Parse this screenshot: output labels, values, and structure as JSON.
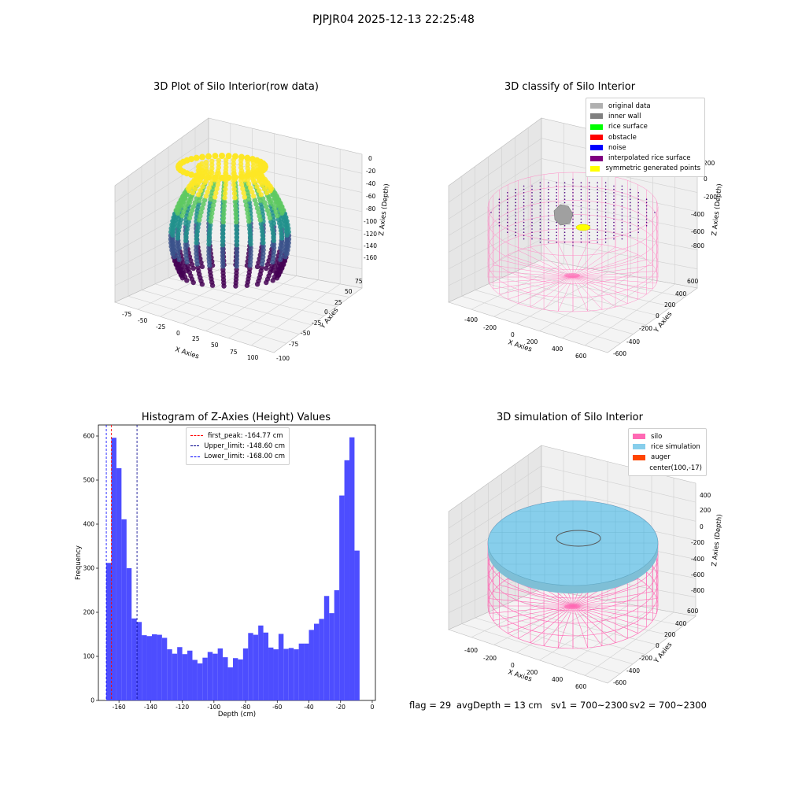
{
  "suptitle": "PJPJR04 2025-12-13 22:25:48",
  "panels": {
    "raw": {
      "title": "3D Plot of Silo Interior(row data)",
      "xlabel": "X Axies",
      "ylabel": "Y Axies",
      "zlabel": "Z Axies (Depth)",
      "xticks": [
        "-75",
        "-50",
        "-25",
        "0",
        "25",
        "50",
        "75",
        "100"
      ],
      "yticks": [
        "75",
        "50",
        "25",
        "0",
        "-25",
        "-50",
        "-75",
        "-100"
      ],
      "zticks": [
        "0",
        "-20",
        "-40",
        "-60",
        "-80",
        "-100",
        "-120",
        "-140",
        "-160"
      ]
    },
    "classify": {
      "title": "3D classify of Silo Interior",
      "xlabel": "X Axies",
      "ylabel": "Y Axies",
      "zlabel": "Z Axies (Depth)",
      "xticks": [
        "-400",
        "-200",
        "0",
        "200",
        "400",
        "600"
      ],
      "yticks": [
        "600",
        "400",
        "200",
        "0",
        "-200",
        "-400",
        "-600"
      ],
      "zticks": [
        "200",
        "0",
        "-200",
        "-400",
        "-600",
        "-800"
      ],
      "legend": [
        {
          "label": "original data",
          "color": "#b0b0b0"
        },
        {
          "label": "inner wall",
          "color": "#808080"
        },
        {
          "label": "rice surface",
          "color": "#00ff00"
        },
        {
          "label": "obstacle",
          "color": "#ff0000"
        },
        {
          "label": "noise",
          "color": "#0000ff"
        },
        {
          "label": "interpolated rice surface",
          "color": "#800080"
        },
        {
          "label": "symmetric generated points",
          "color": "#ffff00"
        }
      ]
    },
    "simulation": {
      "title": "3D simulation of Silo Interior",
      "xlabel": "X Axies",
      "ylabel": "Y Axies",
      "zlabel": "Z Axies (Depth)",
      "xticks": [
        "-400",
        "-200",
        "0",
        "200",
        "400",
        "600"
      ],
      "yticks": [
        "600",
        "400",
        "200",
        "0",
        "-200",
        "-400",
        "-600"
      ],
      "zticks": [
        "400",
        "200",
        "0",
        "-200",
        "-400",
        "-600",
        "-800"
      ],
      "legend": [
        {
          "label": "silo",
          "color": "#ff69b4"
        },
        {
          "label": "rice simulation",
          "color": "#87ceeb"
        },
        {
          "label": "auger",
          "color": "#ff4500"
        },
        {
          "label": "center(100,-17)",
          "color": ""
        }
      ]
    }
  },
  "status": {
    "flag": "flag = 29",
    "avg": "avgDepth = 13 cm",
    "sv1": "sv1 = 700~2300",
    "sv2": "sv2 = 700~2300"
  },
  "chart_data": [
    {
      "type": "bar",
      "title": "Histogram of Z-Axies (Height) Values",
      "xlabel": "Depth (cm)",
      "ylabel": "Frequency",
      "xlim": [
        -173,
        2
      ],
      "ylim": [
        0,
        625
      ],
      "bin_start": -168,
      "bin_width": 3.2,
      "values": [
        312,
        596,
        527,
        411,
        300,
        186,
        178,
        148,
        146,
        150,
        149,
        142,
        116,
        106,
        121,
        105,
        113,
        92,
        84,
        97,
        110,
        106,
        118,
        98,
        75,
        96,
        93,
        118,
        153,
        149,
        170,
        154,
        120,
        116,
        151,
        117,
        119,
        116,
        129,
        129,
        160,
        174,
        185,
        237,
        198,
        250,
        465,
        545,
        597,
        340
      ],
      "xticks": [
        -160,
        -140,
        -120,
        -100,
        -80,
        -60,
        -40,
        -20,
        0
      ],
      "yticks": [
        0,
        100,
        200,
        300,
        400,
        500,
        600
      ],
      "bar_color": "#4d4dff",
      "vlines": [
        {
          "label": "first_peak: -164.77 cm",
          "x": -164.77,
          "color": "#ff0000"
        },
        {
          "label": "Upper_limit: -148.60 cm",
          "x": -148.6,
          "color": "#00008b"
        },
        {
          "label": "Lower_limit: -168.00 cm",
          "x": -168.0,
          "color": "#0000ff"
        }
      ]
    }
  ]
}
